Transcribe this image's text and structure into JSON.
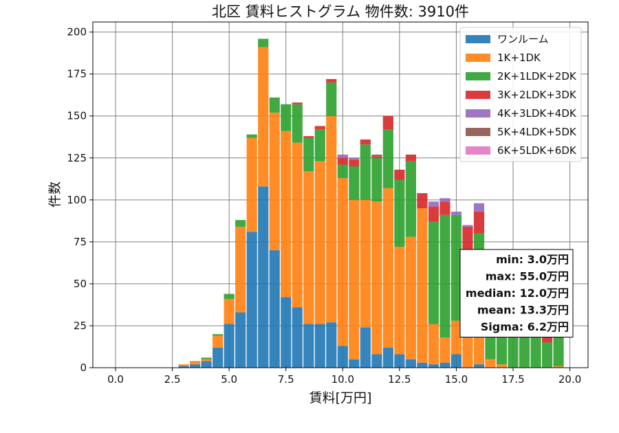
{
  "chart_data": {
    "type": "bar",
    "stacked": true,
    "title": "北区 賃料ヒストグラム 物件数: 3910件",
    "xlabel": "賃料[万円]",
    "ylabel": "件数",
    "xlim": [
      -1.0,
      20.8
    ],
    "ylim": [
      0,
      206
    ],
    "xticks": [
      0,
      2.5,
      5,
      7.5,
      10,
      12.5,
      15,
      17.5,
      20
    ],
    "xtick_labels": [
      "0.0",
      "2.5",
      "5.0",
      "7.5",
      "10.0",
      "12.5",
      "15.0",
      "17.5",
      "20.0"
    ],
    "yticks": [
      0,
      25,
      50,
      75,
      100,
      125,
      150,
      175,
      200
    ],
    "grid": true,
    "legend_position": "top-right",
    "bin_width": 0.5,
    "x": [
      3.0,
      3.5,
      4.0,
      4.5,
      5.0,
      5.5,
      6.0,
      6.5,
      7.0,
      7.5,
      8.0,
      8.5,
      9.0,
      9.5,
      10.0,
      10.5,
      11.0,
      11.5,
      12.0,
      12.5,
      13.0,
      13.5,
      14.0,
      14.5,
      15.0,
      15.5,
      16.0,
      16.5,
      17.0,
      17.5,
      18.0,
      18.5,
      19.0,
      19.5
    ],
    "series": [
      {
        "name": "ワンルーム",
        "color": "#1f77b4",
        "values": [
          1,
          2,
          4,
          12,
          26,
          33,
          81,
          108,
          70,
          42,
          36,
          26,
          26,
          27,
          13,
          5,
          24,
          8,
          12,
          8,
          5,
          3,
          2,
          3,
          8,
          0,
          2,
          0,
          0,
          0,
          0,
          0,
          0,
          0
        ]
      },
      {
        "name": "1K+1DK",
        "color": "#ff7f0e",
        "values": [
          1,
          2,
          1,
          7,
          15,
          51,
          56,
          83,
          82,
          99,
          98,
          91,
          97,
          123,
          100,
          95,
          76,
          91,
          95,
          64,
          73,
          92,
          24,
          15,
          20,
          24,
          17,
          5,
          2,
          0,
          0,
          0,
          0,
          1
        ]
      },
      {
        "name": "2K+1LDK+2DK",
        "color": "#2ca02c",
        "values": [
          0,
          0,
          1,
          1,
          3,
          4,
          2,
          5,
          9,
          16,
          23,
          20,
          19,
          20,
          8,
          20,
          33,
          26,
          35,
          40,
          45,
          0,
          61,
          73,
          63,
          10,
          61,
          20,
          22,
          22,
          20,
          22,
          15,
          22
        ]
      },
      {
        "name": "3K+2LDK+3DK",
        "color": "#d62728",
        "values": [
          0,
          0,
          0,
          0,
          0,
          0,
          0,
          0,
          0,
          0,
          1,
          1,
          2,
          2,
          4,
          4,
          3,
          1,
          8,
          6,
          4,
          9,
          9,
          8,
          0,
          50,
          13,
          8,
          8,
          8,
          8,
          8,
          8,
          8
        ]
      },
      {
        "name": "4K+3LDK+4DK",
        "color": "#9467bd",
        "values": [
          0,
          0,
          0,
          0,
          0,
          0,
          0,
          0,
          0,
          0,
          0,
          0,
          0,
          0,
          2,
          1,
          0,
          0,
          0,
          0,
          0,
          0,
          3,
          2,
          2,
          1,
          5,
          0,
          0,
          0,
          0,
          0,
          0,
          0
        ]
      },
      {
        "name": "5K+4LDK+5DK",
        "color": "#8c564b",
        "values": [
          0,
          0,
          0,
          0,
          0,
          0,
          0,
          0,
          0,
          0,
          0,
          0,
          0,
          0,
          0,
          0,
          0,
          1,
          0,
          0,
          0,
          0,
          0,
          0,
          0,
          0,
          0,
          0,
          0,
          0,
          0,
          0,
          0,
          0
        ]
      },
      {
        "name": "6K+5LDK+6DK",
        "color": "#e377c2",
        "values": [
          0,
          0,
          0,
          0,
          0,
          0,
          0,
          0,
          0,
          0,
          0,
          0,
          0,
          0,
          0,
          0,
          0,
          0,
          0,
          0,
          0,
          0,
          0,
          0,
          0,
          0,
          0,
          0,
          0,
          0,
          0,
          0,
          0,
          0
        ]
      }
    ],
    "stats_box": {
      "lines": [
        "min: 3.0万円",
        "max: 55.0万円",
        "median: 12.0万円",
        "mean: 13.3万円",
        "Sigma: 6.2万円"
      ],
      "position": "right-middle"
    }
  }
}
